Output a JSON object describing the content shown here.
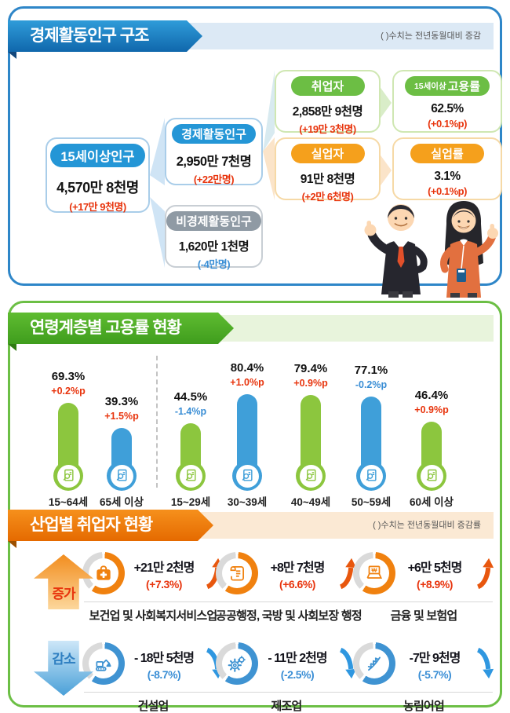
{
  "colors": {
    "accent_blue": "#2496d6",
    "accent_green": "#6cbe44",
    "accent_orange": "#f0810f",
    "red": "#e8350e",
    "neg_blue": "#3a8ed5",
    "bar_green": "#8cc63e",
    "bar_blue": "#3f9fd9",
    "gray_pill": "#8f9aa4"
  },
  "section1": {
    "title": "경제활동인구 구조",
    "note": "( )수치는 전년동월대비 증감",
    "boxes": {
      "pop15": {
        "label": "15세이상인구",
        "value": "4,570만 8천명",
        "change": "(+17만 9천명)"
      },
      "active": {
        "label": "경제활동인구",
        "value": "2,950만 7천명",
        "change": "(+22만명)"
      },
      "inactive": {
        "label": "비경제활동인구",
        "value": "1,620만 1천명",
        "change": "(-4만명)"
      },
      "employed": {
        "label": "취업자",
        "value": "2,858만 9천명",
        "change": "(+19만 3천명)"
      },
      "emp_rate": {
        "label_small": "15세이상",
        "label": "고용률",
        "value": "62.5%",
        "change": "(+0.1%p)"
      },
      "unemployed": {
        "label": "실업자",
        "value": "91만 8천명",
        "change": "(+2만 6천명)"
      },
      "unemp_rate": {
        "label": "실업률",
        "value": "3.1%",
        "change": "(+0.1%p)"
      }
    }
  },
  "section2": {
    "title": "연령계층별 고용률 현황",
    "chart_data": {
      "type": "bar",
      "title": "연령계층별 고용률 현황",
      "categories": [
        "15~64세",
        "65세 이상",
        "15~29세",
        "30~39세",
        "40~49세",
        "50~59세",
        "60세 이상"
      ],
      "values": [
        69.3,
        39.3,
        44.5,
        80.4,
        79.4,
        77.1,
        46.4
      ],
      "value_labels": [
        "69.3%",
        "39.3%",
        "44.5%",
        "80.4%",
        "79.4%",
        "77.1%",
        "46.4%"
      ],
      "changes": [
        "+0.2%p",
        "+1.5%p",
        "-1.4%p",
        "+1.0%p",
        "+0.9%p",
        "-0.2%p",
        "+0.9%p"
      ],
      "bar_colors": [
        "green",
        "blue",
        "green",
        "blue",
        "green",
        "blue",
        "green"
      ],
      "unit": "%",
      "ylim": [
        0,
        100
      ],
      "group_divider_after_index": 1,
      "legend": false
    }
  },
  "section3": {
    "title": "산업별 취업자 현황",
    "note": "( )수치는 전년동월대비 증감률",
    "increase_label": "증가",
    "decrease_label": "감소",
    "increase": [
      {
        "industry": "보건업 및 사회복지서비스업",
        "value": "+21만 2천명",
        "percent": "(+7.3%)",
        "icon": "medical-bag"
      },
      {
        "industry": "공공행정, 국방 및 사회보장 행정",
        "value": "+8만 7천명",
        "percent": "(+6.6%)",
        "icon": "scroll"
      },
      {
        "industry": "금융 및 보험업",
        "value": "+6만 5천명",
        "percent": "(+8.9%)",
        "icon": "laptop-won"
      }
    ],
    "decrease": [
      {
        "industry": "건설업",
        "value": "- 18만 5천명",
        "percent": "(-8.7%)",
        "icon": "excavator"
      },
      {
        "industry": "제조업",
        "value": "- 11만 2천명",
        "percent": "(-2.5%)",
        "icon": "gears"
      },
      {
        "industry": "농림어업",
        "value": "-7만 9천명",
        "percent": "(-5.7%)",
        "icon": "wheat"
      }
    ]
  }
}
